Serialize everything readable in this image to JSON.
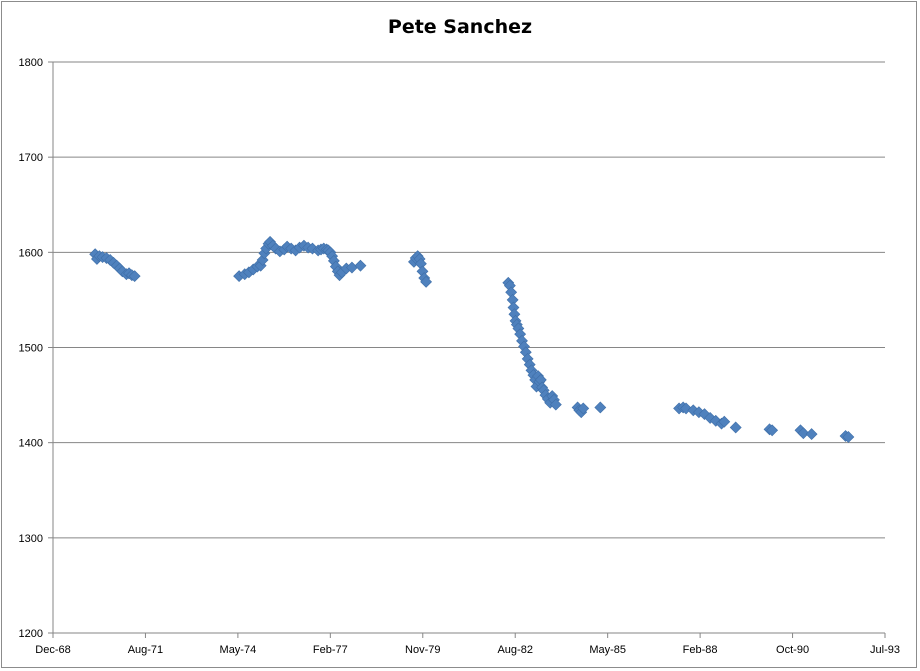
{
  "chart_data": {
    "type": "scatter",
    "title": "Pete Sanchez",
    "xlabel": "",
    "ylabel": "",
    "x_axis": {
      "min": "1968-12-01",
      "max": "1993-07-01",
      "tick_labels": [
        "Dec-68",
        "Aug-71",
        "May-74",
        "Feb-77",
        "Nov-79",
        "Aug-82",
        "May-85",
        "Feb-88",
        "Oct-90",
        "Jul-93"
      ]
    },
    "y_axis": {
      "min": 1200,
      "max": 1800,
      "tick_labels": [
        "1200",
        "1300",
        "1400",
        "1500",
        "1600",
        "1700",
        "1800"
      ],
      "gridlines": true
    },
    "legend": "none",
    "marker_color": "#4f81bd",
    "marker": "diamond",
    "series": [
      {
        "points": [
          [
            "1970-03-01",
            1598
          ],
          [
            "1970-03-20",
            1593
          ],
          [
            "1970-04-15",
            1596
          ],
          [
            "1970-05-20",
            1595
          ],
          [
            "1970-07-01",
            1594
          ],
          [
            "1970-08-10",
            1592
          ],
          [
            "1970-09-15",
            1589
          ],
          [
            "1970-10-20",
            1586
          ],
          [
            "1970-11-20",
            1583
          ],
          [
            "1970-12-20",
            1580
          ],
          [
            "1971-02-01",
            1577
          ],
          [
            "1971-03-01",
            1578
          ],
          [
            "1971-04-01",
            1576
          ],
          [
            "1971-05-01",
            1575
          ],
          [
            "1974-06-01",
            1575
          ],
          [
            "1974-08-01",
            1577
          ],
          [
            "1974-09-15",
            1579
          ],
          [
            "1974-11-01",
            1582
          ],
          [
            "1974-12-15",
            1585
          ],
          [
            "1975-01-20",
            1586
          ],
          [
            "1975-02-10",
            1592
          ],
          [
            "1975-03-01",
            1599
          ],
          [
            "1975-03-20",
            1604
          ],
          [
            "1975-04-15",
            1609
          ],
          [
            "1975-05-01",
            1611
          ],
          [
            "1975-06-01",
            1607
          ],
          [
            "1975-07-01",
            1604
          ],
          [
            "1975-08-15",
            1601
          ],
          [
            "1975-10-01",
            1603
          ],
          [
            "1975-11-01",
            1606
          ],
          [
            "1975-12-15",
            1604
          ],
          [
            "1976-02-01",
            1602
          ],
          [
            "1976-03-15",
            1605
          ],
          [
            "1976-05-01",
            1607
          ],
          [
            "1976-06-15",
            1605
          ],
          [
            "1976-08-01",
            1604
          ],
          [
            "1976-10-01",
            1602
          ],
          [
            "1976-11-01",
            1603
          ],
          [
            "1976-12-01",
            1604
          ],
          [
            "1977-01-01",
            1603
          ],
          [
            "1977-01-20",
            1602
          ],
          [
            "1977-02-10",
            1600
          ],
          [
            "1977-03-01",
            1596
          ],
          [
            "1977-03-20",
            1591
          ],
          [
            "1977-04-10",
            1585
          ],
          [
            "1977-05-01",
            1580
          ],
          [
            "1977-05-20",
            1576
          ],
          [
            "1977-06-15",
            1579
          ],
          [
            "1977-08-01",
            1583
          ],
          [
            "1977-10-01",
            1584
          ],
          [
            "1978-01-01",
            1586
          ],
          [
            "1979-08-01",
            1590
          ],
          [
            "1979-08-20",
            1594
          ],
          [
            "1979-09-10",
            1596
          ],
          [
            "1979-10-01",
            1593
          ],
          [
            "1979-10-15",
            1588
          ],
          [
            "1979-11-01",
            1580
          ],
          [
            "1979-11-20",
            1573
          ],
          [
            "1979-12-10",
            1569
          ],
          [
            "1982-05-15",
            1568
          ],
          [
            "1982-06-01",
            1565
          ],
          [
            "1982-06-15",
            1558
          ],
          [
            "1982-07-01",
            1550
          ],
          [
            "1982-07-10",
            1542
          ],
          [
            "1982-07-20",
            1535
          ],
          [
            "1982-08-01",
            1528
          ],
          [
            "1982-08-15",
            1524
          ],
          [
            "1982-09-01",
            1520
          ],
          [
            "1982-09-20",
            1514
          ],
          [
            "1982-10-10",
            1507
          ],
          [
            "1982-11-01",
            1501
          ],
          [
            "1982-11-20",
            1495
          ],
          [
            "1982-12-10",
            1488
          ],
          [
            "1983-01-01",
            1482
          ],
          [
            "1983-01-20",
            1476
          ],
          [
            "1983-02-10",
            1471
          ],
          [
            "1983-03-01",
            1466
          ],
          [
            "1983-03-15",
            1459
          ],
          [
            "1983-04-01",
            1470
          ],
          [
            "1983-04-15",
            1464
          ],
          [
            "1983-05-01",
            1466
          ],
          [
            "1983-05-15",
            1458
          ],
          [
            "1983-06-01",
            1455
          ],
          [
            "1983-06-20",
            1450
          ],
          [
            "1983-07-15",
            1446
          ],
          [
            "1983-08-10",
            1442
          ],
          [
            "1983-09-01",
            1449
          ],
          [
            "1983-09-20",
            1445
          ],
          [
            "1983-10-10",
            1440
          ],
          [
            "1984-06-01",
            1437
          ],
          [
            "1984-06-20",
            1434
          ],
          [
            "1984-07-10",
            1432
          ],
          [
            "1984-08-01",
            1436
          ],
          [
            "1985-02-01",
            1437
          ],
          [
            "1987-06-01",
            1436
          ],
          [
            "1987-07-15",
            1437
          ],
          [
            "1987-08-15",
            1436
          ],
          [
            "1987-11-01",
            1434
          ],
          [
            "1988-01-01",
            1432
          ],
          [
            "1988-03-01",
            1430
          ],
          [
            "1988-05-01",
            1426
          ],
          [
            "1988-07-01",
            1423
          ],
          [
            "1988-09-01",
            1420
          ],
          [
            "1988-10-01",
            1422
          ],
          [
            "1989-02-01",
            1416
          ],
          [
            "1990-02-01",
            1414
          ],
          [
            "1990-03-01",
            1413
          ],
          [
            "1991-01-01",
            1413
          ],
          [
            "1991-02-01",
            1410
          ],
          [
            "1991-05-01",
            1409
          ],
          [
            "1992-05-01",
            1407
          ],
          [
            "1992-06-01",
            1406
          ]
        ]
      }
    ]
  }
}
